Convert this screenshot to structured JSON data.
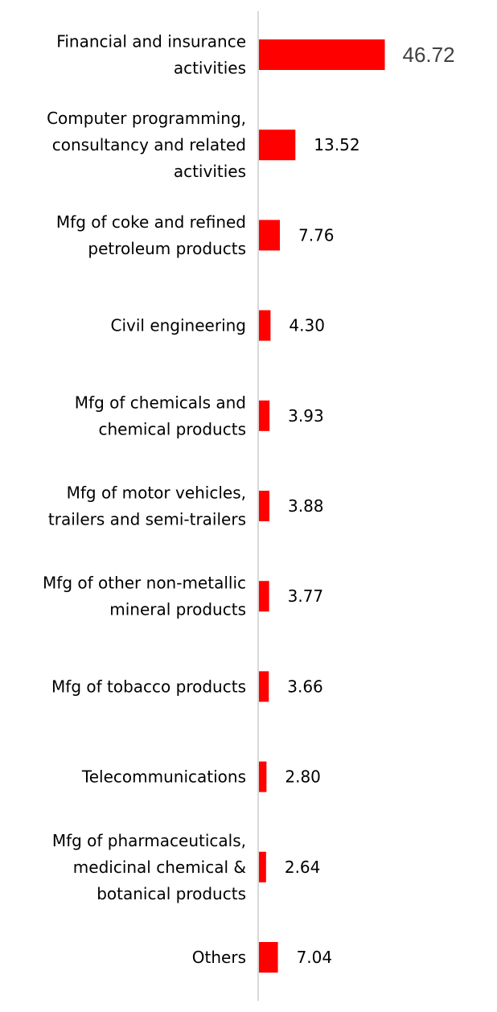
{
  "chart_data": {
    "type": "bar",
    "orientation": "horizontal",
    "title": "",
    "xlabel": "",
    "ylabel": "",
    "grid": false,
    "legend": "none",
    "bar_color": "#ff0000",
    "axis_color": "#d9d9d9",
    "categories": [
      "Financial and insurance activities",
      "Computer programming, consultancy and related activities",
      "Mfg of coke and refined petroleum products",
      "Civil engineering",
      "Mfg of chemicals and chemical products",
      "Mfg of motor vehicles, trailers and semi-trailers",
      "Mfg of other non-metallic mineral products",
      "Mfg of tobacco products",
      "Telecommunications",
      "Mfg of pharmaceuticals, medicinal chemical & botanical products",
      "Others"
    ],
    "values": [
      46.72,
      13.52,
      7.76,
      4.3,
      3.93,
      3.88,
      3.77,
      3.66,
      2.8,
      2.64,
      7.04
    ],
    "value_labels": [
      "46.72",
      "13.52",
      "7.76",
      "4.30",
      "3.93",
      "3.88",
      "3.77",
      "3.66",
      "2.80",
      "2.64",
      "7.04"
    ],
    "category_label_lines": [
      [
        "Financial and insurance",
        "activities"
      ],
      [
        "Computer programming,",
        "consultancy and related",
        "activities"
      ],
      [
        "Mfg of coke and refined",
        "petroleum products"
      ],
      [
        "Civil engineering"
      ],
      [
        "Mfg of chemicals and",
        "chemical products"
      ],
      [
        "Mfg of motor vehicles,",
        "trailers and semi-trailers"
      ],
      [
        "Mfg of other non-metallic",
        "mineral products"
      ],
      [
        "Mfg of tobacco products"
      ],
      [
        "Telecommunications"
      ],
      [
        "Mfg of pharmaceuticals,",
        "medicinal chemical &",
        "botanical products"
      ],
      [
        "Others"
      ]
    ]
  }
}
